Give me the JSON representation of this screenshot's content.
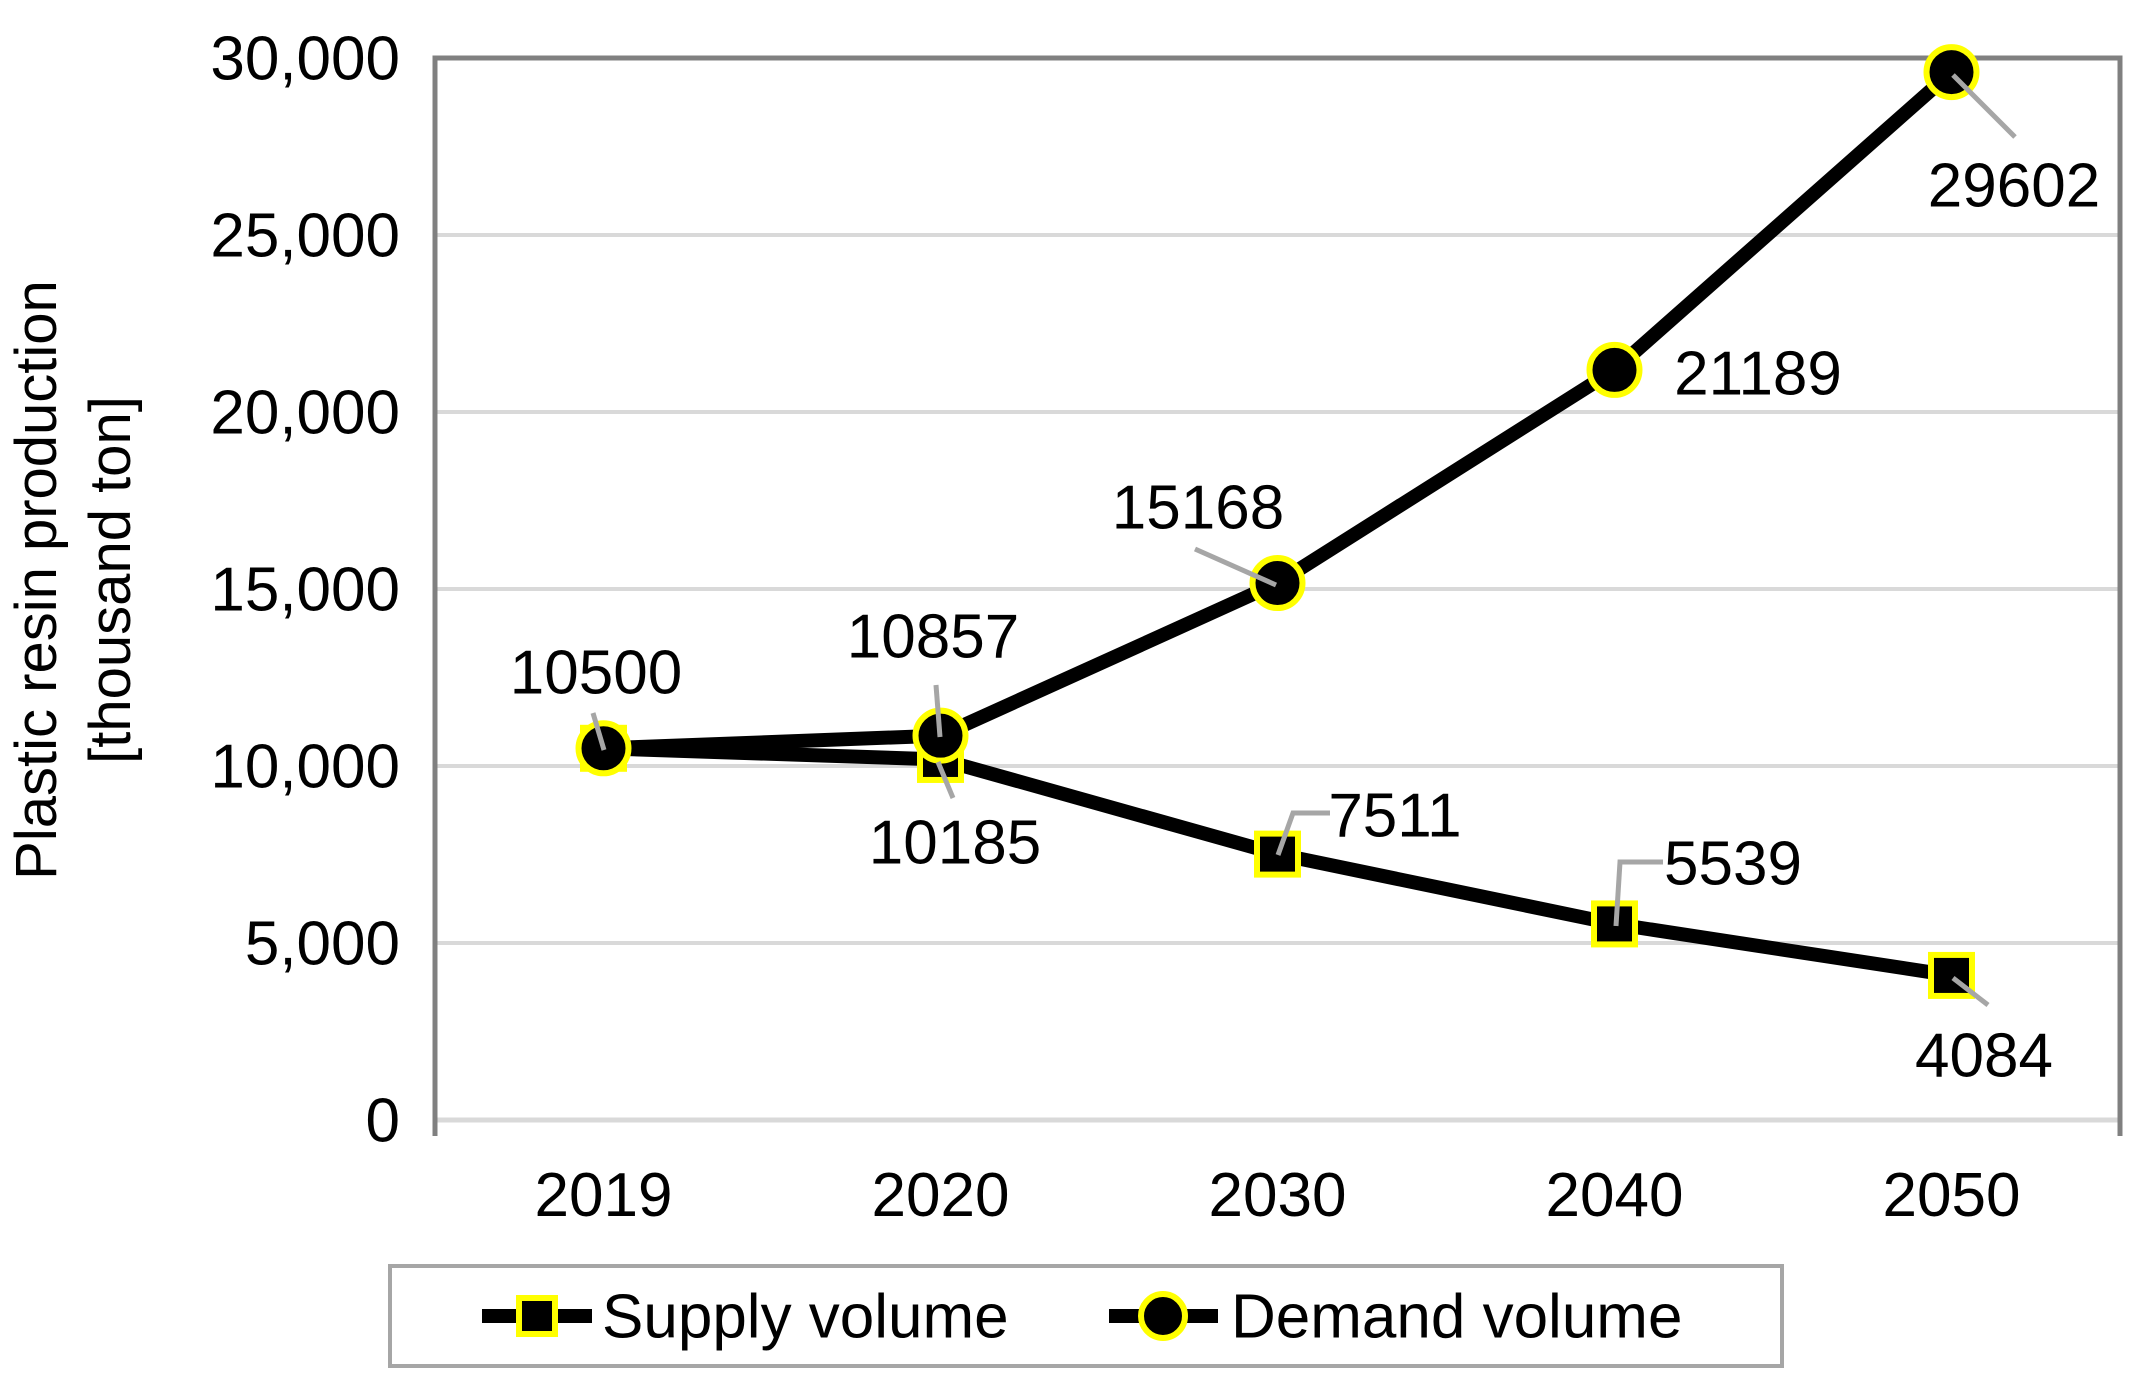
{
  "chart_data": {
    "type": "line",
    "categories": [
      "2019",
      "2020",
      "2030",
      "2040",
      "2050"
    ],
    "series": [
      {
        "name": "Supply volume",
        "marker": "square",
        "values": [
          10500,
          10185,
          7511,
          5539,
          4084
        ],
        "data_labels": [
          null,
          "10185",
          "7511",
          "5539",
          "4084"
        ]
      },
      {
        "name": "Demand volume",
        "marker": "circle",
        "values": [
          10500,
          10857,
          15168,
          21189,
          29602
        ],
        "data_labels": [
          "10500",
          "10857",
          "15168",
          "21189",
          "29602"
        ]
      }
    ],
    "ylabel_line1": "Plastic resin production",
    "ylabel_line2": "[thousand ton]",
    "xlabel": "",
    "title": "",
    "ylim": [
      0,
      30000
    ],
    "ytick_step": 5000,
    "ytick_labels": [
      "0",
      "5,000",
      "10,000",
      "15,000",
      "20,000",
      "25,000",
      "30,000"
    ],
    "grid": true,
    "legend_position": "bottom",
    "colors": {
      "series_line": "#000000",
      "marker_fill": "#000000",
      "marker_outline": "#ffff00",
      "gridline": "#d9d9d9",
      "plot_border": "#808080",
      "axis_bottom": "#d9d9d9",
      "leader_line": "#a6a6a6",
      "legend_border": "#a6a6a6",
      "text": "#000000",
      "background": "#ffffff"
    }
  }
}
